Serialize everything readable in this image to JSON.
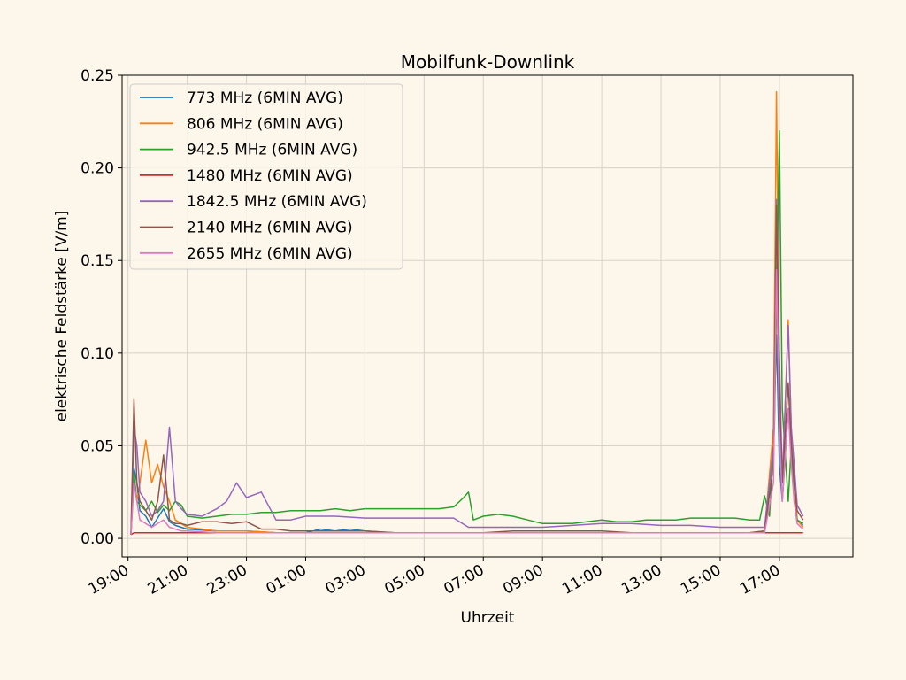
{
  "chart_data": {
    "type": "line",
    "title": "Mobilfunk-Downlink",
    "xlabel": "Uhrzeit",
    "ylabel": "elektrische Feldstärke [V/m]",
    "xlim": [
      "18:48",
      "19:29+1"
    ],
    "ylim": [
      -0.01,
      0.25
    ],
    "grid": true,
    "legend": "top-left",
    "x_ticks": [
      "19:00",
      "21:00",
      "23:00",
      "01:00",
      "03:00",
      "05:00",
      "07:00",
      "09:00",
      "11:00",
      "13:00",
      "15:00",
      "17:00"
    ],
    "y_ticks": [
      "0.00",
      "0.05",
      "0.10",
      "0.15",
      "0.20",
      "0.25"
    ],
    "series": [
      {
        "name": "773 MHz (6MIN AVG)",
        "color": "#1f77b4",
        "x": [
          "19:06",
          "19:12",
          "19:18",
          "19:24",
          "19:36",
          "19:48",
          "20:00",
          "20:12",
          "20:24",
          "20:36",
          "20:48",
          "21:00",
          "22:00",
          "23:00",
          "00:00",
          "01:00",
          "01:30",
          "02:00",
          "02:30",
          "03:00",
          "04:00",
          "05:00",
          "06:00",
          "07:00",
          "08:00",
          "09:00",
          "10:00",
          "11:00",
          "12:00",
          "13:00",
          "14:00",
          "15:00",
          "16:00",
          "16:30",
          "16:48",
          "16:54",
          "17:00",
          "17:06",
          "17:18",
          "17:24",
          "17:30",
          "17:36",
          "17:48"
        ],
        "values": [
          0.002,
          0.038,
          0.03,
          0.015,
          0.012,
          0.006,
          0.011,
          0.016,
          0.009,
          0.007,
          0.006,
          0.005,
          0.004,
          0.004,
          0.003,
          0.003,
          0.005,
          0.004,
          0.005,
          0.004,
          0.003,
          0.003,
          0.003,
          0.003,
          0.003,
          0.003,
          0.003,
          0.003,
          0.003,
          0.003,
          0.003,
          0.003,
          0.003,
          0.004,
          0.05,
          0.11,
          0.04,
          0.02,
          0.07,
          0.05,
          0.03,
          0.01,
          0.007
        ]
      },
      {
        "name": "806 MHz (6MIN AVG)",
        "color": "#ff7f0e",
        "x": [
          "19:06",
          "19:12",
          "19:18",
          "19:24",
          "19:36",
          "19:48",
          "20:00",
          "20:12",
          "20:24",
          "20:36",
          "20:48",
          "21:00",
          "22:00",
          "23:00",
          "00:00",
          "01:00",
          "02:00",
          "03:00",
          "04:00",
          "05:00",
          "06:00",
          "07:00",
          "08:00",
          "09:00",
          "10:00",
          "11:00",
          "12:00",
          "13:00",
          "14:00",
          "15:00",
          "16:00",
          "16:30",
          "16:48",
          "16:54",
          "17:00",
          "17:06",
          "17:18",
          "17:24",
          "17:30",
          "17:36",
          "17:48"
        ],
        "values": [
          0.002,
          0.035,
          0.02,
          0.03,
          0.053,
          0.03,
          0.04,
          0.028,
          0.02,
          0.01,
          0.008,
          0.006,
          0.004,
          0.004,
          0.003,
          0.003,
          0.003,
          0.003,
          0.003,
          0.003,
          0.003,
          0.003,
          0.003,
          0.003,
          0.003,
          0.003,
          0.003,
          0.003,
          0.003,
          0.003,
          0.003,
          0.004,
          0.06,
          0.241,
          0.08,
          0.03,
          0.118,
          0.06,
          0.03,
          0.01,
          0.006
        ]
      },
      {
        "name": "942.5 MHz (6MIN AVG)",
        "color": "#2ca02c",
        "x": [
          "19:06",
          "19:12",
          "19:18",
          "19:24",
          "19:36",
          "19:48",
          "20:00",
          "20:12",
          "20:24",
          "20:36",
          "20:48",
          "21:00",
          "21:30",
          "22:00",
          "22:30",
          "23:00",
          "23:30",
          "00:00",
          "00:30",
          "01:00",
          "01:30",
          "02:00",
          "02:30",
          "03:00",
          "03:30",
          "04:00",
          "04:30",
          "05:00",
          "05:30",
          "06:00",
          "06:20",
          "06:30",
          "06:40",
          "07:00",
          "07:30",
          "08:00",
          "08:30",
          "09:00",
          "09:30",
          "10:00",
          "10:30",
          "11:00",
          "11:30",
          "12:00",
          "12:30",
          "13:00",
          "13:30",
          "14:00",
          "14:30",
          "15:00",
          "15:30",
          "16:00",
          "16:20",
          "16:30",
          "16:40",
          "16:50",
          "17:00",
          "17:06",
          "17:18",
          "17:24",
          "17:30",
          "17:36",
          "17:48"
        ],
        "values": [
          0.002,
          0.035,
          0.02,
          0.018,
          0.015,
          0.02,
          0.014,
          0.018,
          0.015,
          0.02,
          0.018,
          0.012,
          0.011,
          0.012,
          0.013,
          0.013,
          0.014,
          0.014,
          0.015,
          0.015,
          0.015,
          0.016,
          0.015,
          0.016,
          0.016,
          0.016,
          0.016,
          0.016,
          0.016,
          0.017,
          0.022,
          0.025,
          0.01,
          0.012,
          0.013,
          0.012,
          0.01,
          0.008,
          0.008,
          0.008,
          0.009,
          0.01,
          0.009,
          0.009,
          0.01,
          0.01,
          0.01,
          0.011,
          0.011,
          0.011,
          0.011,
          0.01,
          0.01,
          0.023,
          0.012,
          0.06,
          0.22,
          0.07,
          0.02,
          0.05,
          0.02,
          0.01,
          0.008
        ]
      },
      {
        "name": "1480 MHz (6MIN AVG)",
        "color": "#d62728",
        "x": [
          "19:06",
          "19:12",
          "19:18",
          "19:24",
          "19:36",
          "20:00",
          "21:00",
          "22:00",
          "23:00",
          "00:00",
          "01:00",
          "02:00",
          "03:00",
          "04:00",
          "05:00",
          "06:00",
          "07:00",
          "08:00",
          "09:00",
          "10:00",
          "11:00",
          "12:00",
          "13:00",
          "14:00",
          "15:00",
          "16:00",
          "16:40",
          "16:54",
          "17:00",
          "17:06",
          "17:18",
          "17:24",
          "17:30",
          "17:36",
          "17:48"
        ],
        "values": [
          0.002,
          0.003,
          0.003,
          0.003,
          0.003,
          0.003,
          0.003,
          0.003,
          0.003,
          0.003,
          0.003,
          0.003,
          0.003,
          0.003,
          0.003,
          0.003,
          0.003,
          0.003,
          0.003,
          0.003,
          0.003,
          0.003,
          0.003,
          0.003,
          0.003,
          0.003,
          0.003,
          0.003,
          0.003,
          0.003,
          0.003,
          0.003,
          0.003,
          0.003,
          0.003
        ]
      },
      {
        "name": "1842.5 MHz (6MIN AVG)",
        "color": "#9467bd",
        "x": [
          "19:06",
          "19:12",
          "19:18",
          "19:24",
          "19:36",
          "19:48",
          "20:00",
          "20:12",
          "20:24",
          "20:36",
          "20:48",
          "21:00",
          "21:30",
          "22:00",
          "22:20",
          "22:40",
          "23:00",
          "23:30",
          "00:00",
          "00:30",
          "01:00",
          "02:00",
          "03:00",
          "04:00",
          "05:00",
          "06:00",
          "06:30",
          "07:00",
          "08:00",
          "09:00",
          "10:00",
          "11:00",
          "12:00",
          "13:00",
          "14:00",
          "15:00",
          "16:00",
          "16:30",
          "16:48",
          "16:54",
          "17:00",
          "17:06",
          "17:18",
          "17:24",
          "17:30",
          "17:36",
          "17:48"
        ],
        "values": [
          0.002,
          0.06,
          0.05,
          0.025,
          0.02,
          0.012,
          0.015,
          0.02,
          0.06,
          0.02,
          0.016,
          0.013,
          0.012,
          0.016,
          0.02,
          0.03,
          0.022,
          0.025,
          0.01,
          0.01,
          0.012,
          0.012,
          0.011,
          0.011,
          0.011,
          0.011,
          0.006,
          0.006,
          0.006,
          0.006,
          0.007,
          0.008,
          0.008,
          0.007,
          0.007,
          0.006,
          0.006,
          0.006,
          0.05,
          0.183,
          0.1,
          0.03,
          0.115,
          0.06,
          0.04,
          0.018,
          0.012
        ]
      },
      {
        "name": "2140 MHz (6MIN AVG)",
        "color": "#8c564b",
        "x": [
          "19:06",
          "19:12",
          "19:18",
          "19:24",
          "19:36",
          "19:48",
          "20:00",
          "20:12",
          "20:24",
          "20:36",
          "20:48",
          "21:00",
          "21:30",
          "22:00",
          "22:30",
          "23:00",
          "23:30",
          "00:00",
          "00:30",
          "01:00",
          "02:00",
          "03:00",
          "04:00",
          "05:00",
          "06:00",
          "07:00",
          "08:00",
          "09:00",
          "10:00",
          "11:00",
          "12:00",
          "13:00",
          "14:00",
          "15:00",
          "16:00",
          "16:30",
          "16:48",
          "16:54",
          "17:00",
          "17:06",
          "17:18",
          "17:24",
          "17:30",
          "17:36",
          "17:48"
        ],
        "values": [
          0.002,
          0.075,
          0.03,
          0.02,
          0.015,
          0.01,
          0.02,
          0.045,
          0.01,
          0.008,
          0.008,
          0.007,
          0.009,
          0.009,
          0.008,
          0.009,
          0.005,
          0.005,
          0.004,
          0.004,
          0.004,
          0.004,
          0.003,
          0.003,
          0.003,
          0.003,
          0.004,
          0.004,
          0.004,
          0.004,
          0.003,
          0.003,
          0.003,
          0.003,
          0.003,
          0.004,
          0.04,
          0.18,
          0.08,
          0.03,
          0.084,
          0.05,
          0.03,
          0.015,
          0.01
        ]
      },
      {
        "name": "2655 MHz (6MIN AVG)",
        "color": "#e377c2",
        "x": [
          "19:06",
          "19:12",
          "19:18",
          "19:24",
          "19:36",
          "19:48",
          "20:00",
          "20:12",
          "20:24",
          "20:36",
          "20:48",
          "21:00",
          "22:00",
          "23:00",
          "00:00",
          "01:00",
          "02:00",
          "03:00",
          "04:00",
          "05:00",
          "06:00",
          "07:00",
          "08:00",
          "09:00",
          "10:00",
          "11:00",
          "12:00",
          "13:00",
          "14:00",
          "15:00",
          "16:00",
          "16:30",
          "16:48",
          "16:54",
          "17:00",
          "17:06",
          "17:18",
          "17:24",
          "17:30",
          "17:36",
          "17:48"
        ],
        "values": [
          0.002,
          0.03,
          0.02,
          0.01,
          0.008,
          0.006,
          0.008,
          0.01,
          0.006,
          0.005,
          0.004,
          0.004,
          0.003,
          0.003,
          0.003,
          0.003,
          0.003,
          0.003,
          0.003,
          0.003,
          0.003,
          0.003,
          0.003,
          0.003,
          0.003,
          0.003,
          0.003,
          0.003,
          0.003,
          0.003,
          0.003,
          0.003,
          0.03,
          0.145,
          0.06,
          0.02,
          0.07,
          0.04,
          0.02,
          0.008,
          0.005
        ]
      }
    ]
  }
}
